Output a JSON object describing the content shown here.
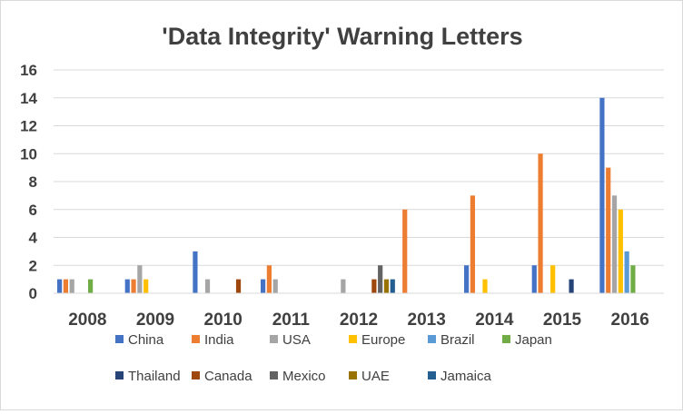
{
  "chart_data": {
    "type": "bar",
    "title": "'Data Integrity' Warning Letters",
    "xlabel": "",
    "ylabel": "",
    "ylim": [
      0,
      16
    ],
    "yticks": [
      "0",
      "2",
      "4",
      "6",
      "8",
      "10",
      "12",
      "14",
      "16"
    ],
    "grid": true,
    "legend_position": "bottom",
    "categories": [
      "2008",
      "2009",
      "2010",
      "2011",
      "2012",
      "2013",
      "2014",
      "2015",
      "2016"
    ],
    "series": [
      {
        "name": "China",
        "color": "#4472c4",
        "values": [
          1,
          1,
          3,
          1,
          0,
          0,
          2,
          2,
          14
        ]
      },
      {
        "name": "India",
        "color": "#ed7d31",
        "values": [
          1,
          1,
          0,
          2,
          0,
          6,
          7,
          10,
          9
        ]
      },
      {
        "name": "USA",
        "color": "#a5a5a5",
        "values": [
          1,
          2,
          1,
          1,
          1,
          0,
          0,
          0,
          7
        ]
      },
      {
        "name": "Europe",
        "color": "#ffc000",
        "values": [
          0,
          1,
          0,
          0,
          0,
          0,
          1,
          2,
          6
        ]
      },
      {
        "name": "Brazil",
        "color": "#5b9bd5",
        "values": [
          0,
          0,
          0,
          0,
          0,
          0,
          0,
          0,
          3
        ]
      },
      {
        "name": "Japan",
        "color": "#70ad47",
        "values": [
          1,
          0,
          0,
          0,
          0,
          0,
          0,
          0,
          2
        ]
      },
      {
        "name": "Thailand",
        "color": "#264478",
        "values": [
          0,
          0,
          0,
          0,
          0,
          0,
          0,
          1,
          0
        ]
      },
      {
        "name": "Canada",
        "color": "#9e480e",
        "values": [
          0,
          0,
          1,
          0,
          1,
          0,
          0,
          0,
          0
        ]
      },
      {
        "name": "Mexico",
        "color": "#636363",
        "values": [
          0,
          0,
          0,
          0,
          2,
          0,
          0,
          0,
          0
        ]
      },
      {
        "name": "UAE",
        "color": "#997300",
        "values": [
          0,
          0,
          0,
          0,
          1,
          0,
          0,
          0,
          0
        ]
      },
      {
        "name": "Jamaica",
        "color": "#255e91",
        "values": [
          0,
          0,
          0,
          0,
          1,
          0,
          0,
          0,
          0
        ]
      }
    ]
  }
}
